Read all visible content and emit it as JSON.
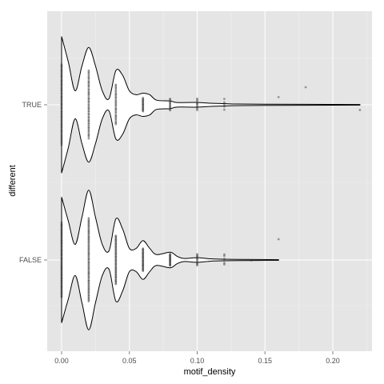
{
  "chart_data": {
    "type": "violin",
    "orientation": "horizontal",
    "xlabel": "motif_density",
    "ylabel": "different",
    "xlim": [
      -0.01,
      0.23
    ],
    "x_ticks": [
      {
        "value": 0.0,
        "label": "0.00"
      },
      {
        "value": 0.05,
        "label": "0.05"
      },
      {
        "value": 0.1,
        "label": "0.10"
      },
      {
        "value": 0.15,
        "label": "0.15"
      },
      {
        "value": 0.2,
        "label": "0.20"
      }
    ],
    "categories": [
      "FALSE",
      "TRUE"
    ],
    "grid": true,
    "legend": "none",
    "colors": {
      "panel_bg": "#e5e5e5",
      "grid_major": "#ffffff",
      "grid_minor": "#f2f2f2",
      "violin_fill": "#ffffff",
      "violin_stroke": "#000000",
      "points": "#333333"
    },
    "groups": [
      {
        "category": "TRUE",
        "density_half_width": [
          [
            0.0,
            0.88
          ],
          [
            0.005,
            0.55
          ],
          [
            0.01,
            0.18
          ],
          [
            0.015,
            0.5
          ],
          [
            0.02,
            0.74
          ],
          [
            0.025,
            0.5
          ],
          [
            0.03,
            0.18
          ],
          [
            0.035,
            0.08
          ],
          [
            0.04,
            0.44
          ],
          [
            0.045,
            0.38
          ],
          [
            0.05,
            0.18
          ],
          [
            0.055,
            0.13
          ],
          [
            0.06,
            0.15
          ],
          [
            0.065,
            0.13
          ],
          [
            0.07,
            0.06
          ],
          [
            0.08,
            0.05
          ],
          [
            0.085,
            0.03
          ],
          [
            0.1,
            0.03
          ],
          [
            0.11,
            0.02
          ],
          [
            0.12,
            0.015
          ],
          [
            0.13,
            0.01
          ],
          [
            0.15,
            0.008
          ],
          [
            0.18,
            0.006
          ],
          [
            0.22,
            0.004
          ]
        ],
        "points": [
          {
            "x": 0.0,
            "count": 60
          },
          {
            "x": 0.02,
            "count": 50
          },
          {
            "x": 0.04,
            "count": 30
          },
          {
            "x": 0.06,
            "count": 18
          },
          {
            "x": 0.08,
            "count": 12
          },
          {
            "x": 0.1,
            "count": 10
          },
          {
            "x": 0.12,
            "count": 5
          },
          {
            "x": 0.16,
            "count": 1
          },
          {
            "x": 0.18,
            "count": 1
          },
          {
            "x": 0.22,
            "count": 1
          }
        ]
      },
      {
        "category": "FALSE",
        "density_half_width": [
          [
            0.0,
            0.81
          ],
          [
            0.005,
            0.5
          ],
          [
            0.01,
            0.2
          ],
          [
            0.015,
            0.55
          ],
          [
            0.02,
            0.9
          ],
          [
            0.025,
            0.55
          ],
          [
            0.03,
            0.2
          ],
          [
            0.035,
            0.12
          ],
          [
            0.04,
            0.53
          ],
          [
            0.045,
            0.4
          ],
          [
            0.05,
            0.15
          ],
          [
            0.055,
            0.15
          ],
          [
            0.06,
            0.25
          ],
          [
            0.065,
            0.15
          ],
          [
            0.07,
            0.07
          ],
          [
            0.08,
            0.1
          ],
          [
            0.085,
            0.05
          ],
          [
            0.09,
            0.02
          ],
          [
            0.1,
            0.03
          ],
          [
            0.11,
            0.015
          ],
          [
            0.12,
            0.01
          ],
          [
            0.13,
            0.008
          ],
          [
            0.16,
            0.004
          ]
        ],
        "points": [
          {
            "x": 0.0,
            "count": 70
          },
          {
            "x": 0.02,
            "count": 70
          },
          {
            "x": 0.04,
            "count": 50
          },
          {
            "x": 0.06,
            "count": 30
          },
          {
            "x": 0.08,
            "count": 20
          },
          {
            "x": 0.1,
            "count": 12
          },
          {
            "x": 0.12,
            "count": 6
          },
          {
            "x": 0.14,
            "count": 1
          },
          {
            "x": 0.16,
            "count": 1
          }
        ]
      }
    ]
  }
}
